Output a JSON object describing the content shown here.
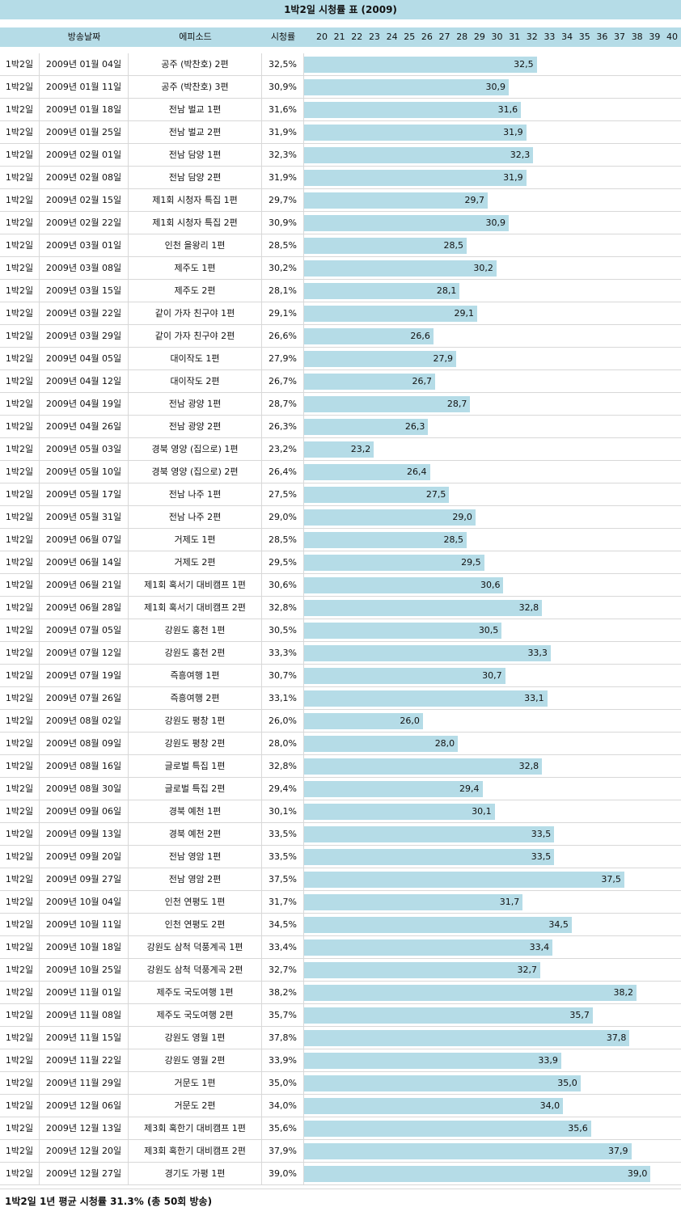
{
  "header": {
    "title": "1박2일 시청률 표 (2009)",
    "col_date": "방송날짜",
    "col_episode": "에피소드",
    "col_rating": "시청률"
  },
  "chart_data": {
    "type": "bar",
    "orientation": "horizontal",
    "title": "1박2일 시청률 표 (2009)",
    "axis_ticks": [
      "20",
      "21",
      "22",
      "23",
      "24",
      "25",
      "26",
      "27",
      "28",
      "29",
      "30",
      "31",
      "32",
      "33",
      "34",
      "35",
      "36",
      "37",
      "38",
      "39",
      "40"
    ],
    "xlim": [
      20,
      40
    ],
    "series": [
      {
        "values": [
          32.5,
          30.9,
          31.6,
          31.9,
          32.3,
          31.9,
          29.7,
          30.9,
          28.5,
          30.2,
          28.1,
          29.1,
          26.6,
          27.9,
          26.7,
          28.7,
          26.3,
          23.2,
          26.4,
          27.5,
          29.0,
          28.5,
          29.5,
          30.6,
          32.8,
          30.5,
          33.3,
          30.7,
          33.1,
          26.0,
          28.0,
          32.8,
          29.4,
          30.1,
          33.5,
          33.5,
          37.5,
          31.7,
          34.5,
          33.4,
          32.7,
          38.2,
          35.7,
          37.8,
          33.9,
          35.0,
          34.0,
          35.6,
          37.9,
          39.0
        ]
      }
    ],
    "bar_labels": [
      "32,5",
      "30,9",
      "31,6",
      "31,9",
      "32,3",
      "31,9",
      "29,7",
      "30,9",
      "28,5",
      "30,2",
      "28,1",
      "29,1",
      "26,6",
      "27,9",
      "26,7",
      "28,7",
      "26,3",
      "23,2",
      "26,4",
      "27,5",
      "29,0",
      "28,5",
      "29,5",
      "30,6",
      "32,8",
      "30,5",
      "33,3",
      "30,7",
      "33,1",
      "26,0",
      "28,0",
      "32,8",
      "29,4",
      "30,1",
      "33,5",
      "33,5",
      "37,5",
      "31,7",
      "34,5",
      "33,4",
      "32,7",
      "38,2",
      "35,7",
      "37,8",
      "33,9",
      "35,0",
      "34,0",
      "35,6",
      "37,9",
      "39,0"
    ],
    "rows": [
      {
        "show": "1박2일",
        "date": "2009년 01월 04일",
        "episode": "공주 (박찬호) 2편",
        "rating": "32,5%"
      },
      {
        "show": "1박2일",
        "date": "2009년 01월 11일",
        "episode": "공주 (박찬호) 3편",
        "rating": "30,9%"
      },
      {
        "show": "1박2일",
        "date": "2009년 01월 18일",
        "episode": "전남 벌교 1편",
        "rating": "31,6%"
      },
      {
        "show": "1박2일",
        "date": "2009년 01월 25일",
        "episode": "전남 벌교 2편",
        "rating": "31,9%"
      },
      {
        "show": "1박2일",
        "date": "2009년 02월 01일",
        "episode": "전남 담양 1편",
        "rating": "32,3%"
      },
      {
        "show": "1박2일",
        "date": "2009년 02월 08일",
        "episode": "전남 담양 2편",
        "rating": "31,9%"
      },
      {
        "show": "1박2일",
        "date": "2009년 02월 15일",
        "episode": "제1회 시청자 특집 1편",
        "rating": "29,7%"
      },
      {
        "show": "1박2일",
        "date": "2009년 02월 22일",
        "episode": "제1회 시청자 특집 2편",
        "rating": "30,9%"
      },
      {
        "show": "1박2일",
        "date": "2009년 03월 01일",
        "episode": "인천 을왕리 1편",
        "rating": "28,5%"
      },
      {
        "show": "1박2일",
        "date": "2009년 03월 08일",
        "episode": "제주도 1편",
        "rating": "30,2%"
      },
      {
        "show": "1박2일",
        "date": "2009년 03월 15일",
        "episode": "제주도 2편",
        "rating": "28,1%"
      },
      {
        "show": "1박2일",
        "date": "2009년 03월 22일",
        "episode": "같이 가자 친구야 1편",
        "rating": "29,1%"
      },
      {
        "show": "1박2일",
        "date": "2009년 03월 29일",
        "episode": "같이 가자 친구야 2편",
        "rating": "26,6%"
      },
      {
        "show": "1박2일",
        "date": "2009년 04월 05일",
        "episode": "대이작도 1편",
        "rating": "27,9%"
      },
      {
        "show": "1박2일",
        "date": "2009년 04월 12일",
        "episode": "대이작도 2편",
        "rating": "26,7%"
      },
      {
        "show": "1박2일",
        "date": "2009년 04월 19일",
        "episode": "전남 광양 1편",
        "rating": "28,7%"
      },
      {
        "show": "1박2일",
        "date": "2009년 04월 26일",
        "episode": "전남 광양 2편",
        "rating": "26,3%"
      },
      {
        "show": "1박2일",
        "date": "2009년 05월 03일",
        "episode": "경북 영양 (집으로) 1편",
        "rating": "23,2%"
      },
      {
        "show": "1박2일",
        "date": "2009년 05월 10일",
        "episode": "경북 영양 (집으로) 2편",
        "rating": "26,4%"
      },
      {
        "show": "1박2일",
        "date": "2009년 05월 17일",
        "episode": "전남 나주 1편",
        "rating": "27,5%"
      },
      {
        "show": "1박2일",
        "date": "2009년 05월 31일",
        "episode": "전남 나주 2편",
        "rating": "29,0%"
      },
      {
        "show": "1박2일",
        "date": "2009년 06월 07일",
        "episode": "거제도 1편",
        "rating": "28,5%"
      },
      {
        "show": "1박2일",
        "date": "2009년 06월 14일",
        "episode": "거제도 2편",
        "rating": "29,5%"
      },
      {
        "show": "1박2일",
        "date": "2009년 06월 21일",
        "episode": "제1회 혹서기 대비캠프 1편",
        "rating": "30,6%"
      },
      {
        "show": "1박2일",
        "date": "2009년 06월 28일",
        "episode": "제1회 혹서기 대비캠프 2편",
        "rating": "32,8%"
      },
      {
        "show": "1박2일",
        "date": "2009년 07월 05일",
        "episode": "강원도 홍천 1편",
        "rating": "30,5%"
      },
      {
        "show": "1박2일",
        "date": "2009년 07월 12일",
        "episode": "강원도 홍천 2편",
        "rating": "33,3%"
      },
      {
        "show": "1박2일",
        "date": "2009년 07월 19일",
        "episode": "즉흥여행 1편",
        "rating": "30,7%"
      },
      {
        "show": "1박2일",
        "date": "2009년 07월 26일",
        "episode": "즉흥여행 2편",
        "rating": "33,1%"
      },
      {
        "show": "1박2일",
        "date": "2009년 08월 02일",
        "episode": "강원도 평창 1편",
        "rating": "26,0%"
      },
      {
        "show": "1박2일",
        "date": "2009년 08월 09일",
        "episode": "강원도 평창 2편",
        "rating": "28,0%"
      },
      {
        "show": "1박2일",
        "date": "2009년 08월 16일",
        "episode": "글로벌 특집 1편",
        "rating": "32,8%"
      },
      {
        "show": "1박2일",
        "date": "2009년 08월 30일",
        "episode": "글로벌 특집 2편",
        "rating": "29,4%"
      },
      {
        "show": "1박2일",
        "date": "2009년 09월 06일",
        "episode": "경북 예천 1편",
        "rating": "30,1%"
      },
      {
        "show": "1박2일",
        "date": "2009년 09월 13일",
        "episode": "경북 예천 2편",
        "rating": "33,5%"
      },
      {
        "show": "1박2일",
        "date": "2009년 09월 20일",
        "episode": "전남 영암 1편",
        "rating": "33,5%"
      },
      {
        "show": "1박2일",
        "date": "2009년 09월 27일",
        "episode": "전남 영암 2편",
        "rating": "37,5%"
      },
      {
        "show": "1박2일",
        "date": "2009년 10월 04일",
        "episode": "인천 연평도 1편",
        "rating": "31,7%"
      },
      {
        "show": "1박2일",
        "date": "2009년 10월 11일",
        "episode": "인천 연평도 2편",
        "rating": "34,5%"
      },
      {
        "show": "1박2일",
        "date": "2009년 10월 18일",
        "episode": "강원도 삼척 덕풍계곡 1편",
        "rating": "33,4%"
      },
      {
        "show": "1박2일",
        "date": "2009년 10월 25일",
        "episode": "강원도 삼척 덕풍계곡 2편",
        "rating": "32,7%"
      },
      {
        "show": "1박2일",
        "date": "2009년 11월 01일",
        "episode": "제주도 국도여행 1편",
        "rating": "38,2%"
      },
      {
        "show": "1박2일",
        "date": "2009년 11월 08일",
        "episode": "제주도 국도여행 2편",
        "rating": "35,7%"
      },
      {
        "show": "1박2일",
        "date": "2009년 11월 15일",
        "episode": "강원도 영월 1편",
        "rating": "37,8%"
      },
      {
        "show": "1박2일",
        "date": "2009년 11월 22일",
        "episode": "강원도 영월 2편",
        "rating": "33,9%"
      },
      {
        "show": "1박2일",
        "date": "2009년 11월 29일",
        "episode": "거문도 1편",
        "rating": "35,0%"
      },
      {
        "show": "1박2일",
        "date": "2009년 12월 06일",
        "episode": "거문도 2편",
        "rating": "34,0%"
      },
      {
        "show": "1박2일",
        "date": "2009년 12월 13일",
        "episode": "제3회 혹한기 대비캠프 1편",
        "rating": "35,6%"
      },
      {
        "show": "1박2일",
        "date": "2009년 12월 20일",
        "episode": "제3회 혹한기 대비캠프 2편",
        "rating": "37,9%"
      },
      {
        "show": "1박2일",
        "date": "2009년 12월 27일",
        "episode": "경기도 가평 1편",
        "rating": "39,0%"
      }
    ]
  },
  "footer": {
    "summary": "1박2일 1년 평균 시청률 31.3% (총 50회 방송)"
  },
  "colors": {
    "bar": "#b5dce7",
    "header_bg": "#b5dce7"
  }
}
